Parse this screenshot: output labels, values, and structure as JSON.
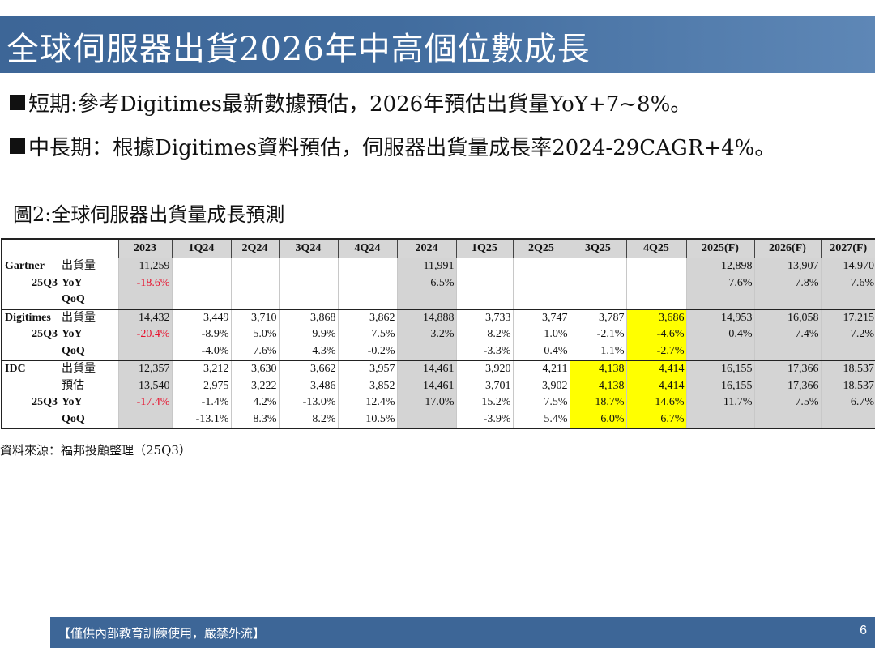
{
  "title": "全球伺服器出貨2026年中高個位數成長",
  "bullets": [
    "短期:參考Digitimes最新數據預估，2026年預估出貨量YoY+7~8%。",
    "中長期：根據Digitimes資料預估，伺服器出貨量成長率2024-29CAGR+4%。"
  ],
  "figure_caption": "圖2:全球伺服器出貨量成長預測",
  "table": {
    "headers": [
      "2023",
      "1Q24",
      "2Q24",
      "3Q24",
      "4Q24",
      "2024",
      "1Q25",
      "2Q25",
      "3Q25",
      "4Q25",
      "2025(F)",
      "2026(F)",
      "2027(F)"
    ],
    "groups": [
      {
        "source": "Gartner",
        "rows": [
          {
            "src": "Gartner",
            "metric": "出貨量",
            "metric_bold": false,
            "values": [
              "11,259",
              "",
              "",
              "",
              "",
              "11,991",
              "",
              "",
              "",
              "",
              "12,898",
              "13,907",
              "14,970"
            ],
            "red": [],
            "yellow": []
          },
          {
            "src": "25Q3",
            "metric": "YoY",
            "metric_bold": true,
            "values": [
              "-18.6%",
              "",
              "",
              "",
              "",
              "6.5%",
              "",
              "",
              "",
              "",
              "7.6%",
              "7.8%",
              "7.6%"
            ],
            "red": [
              0
            ],
            "yellow": []
          },
          {
            "src": "",
            "metric": "QoQ",
            "metric_bold": true,
            "values": [
              "",
              "",
              "",
              "",
              "",
              "",
              "",
              "",
              "",
              "",
              "",
              "",
              ""
            ],
            "red": [],
            "yellow": []
          }
        ]
      },
      {
        "source": "Digitimes",
        "rows": [
          {
            "src": "Digitimes",
            "metric": "出貨量",
            "metric_bold": false,
            "values": [
              "14,432",
              "3,449",
              "3,710",
              "3,868",
              "3,862",
              "14,888",
              "3,733",
              "3,747",
              "3,787",
              "3,686",
              "14,953",
              "16,058",
              "17,215"
            ],
            "red": [],
            "yellow": [
              9
            ]
          },
          {
            "src": "25Q3",
            "metric": "YoY",
            "metric_bold": true,
            "values": [
              "-20.4%",
              "-8.9%",
              "5.0%",
              "9.9%",
              "7.5%",
              "3.2%",
              "8.2%",
              "1.0%",
              "-2.1%",
              "-4.6%",
              "0.4%",
              "7.4%",
              "7.2%"
            ],
            "red": [
              0
            ],
            "yellow": [
              9
            ]
          },
          {
            "src": "",
            "metric": "QoQ",
            "metric_bold": true,
            "values": [
              "",
              "-4.0%",
              "7.6%",
              "4.3%",
              "-0.2%",
              "",
              "-3.3%",
              "0.4%",
              "1.1%",
              "-2.7%",
              "",
              "",
              ""
            ],
            "red": [],
            "yellow": [
              9
            ]
          }
        ]
      },
      {
        "source": "IDC",
        "rows": [
          {
            "src": "IDC",
            "metric": "出貨量",
            "metric_bold": false,
            "values": [
              "12,357",
              "3,212",
              "3,630",
              "3,662",
              "3,957",
              "14,461",
              "3,920",
              "4,211",
              "4,138",
              "4,414",
              "16,155",
              "17,366",
              "18,537"
            ],
            "red": [],
            "yellow": [
              8,
              9
            ]
          },
          {
            "src": "",
            "metric": "預估",
            "metric_bold": false,
            "values": [
              "13,540",
              "2,975",
              "3,222",
              "3,486",
              "3,852",
              "14,461",
              "3,701",
              "3,902",
              "4,138",
              "4,414",
              "16,155",
              "17,366",
              "18,537"
            ],
            "red": [],
            "yellow": [
              8,
              9
            ]
          },
          {
            "src": "25Q3",
            "metric": "YoY",
            "metric_bold": true,
            "values": [
              "-17.4%",
              "-1.4%",
              "4.2%",
              "-13.0%",
              "12.4%",
              "17.0%",
              "15.2%",
              "7.5%",
              "18.7%",
              "14.6%",
              "11.7%",
              "7.5%",
              "6.7%"
            ],
            "red": [
              0
            ],
            "yellow": [
              8,
              9
            ]
          },
          {
            "src": "",
            "metric": "QoQ",
            "metric_bold": true,
            "values": [
              "",
              "-13.1%",
              "8.3%",
              "8.2%",
              "10.5%",
              "",
              "-3.9%",
              "5.4%",
              "6.0%",
              "6.7%",
              "",
              "",
              ""
            ],
            "red": [],
            "yellow": [
              8,
              9
            ]
          }
        ]
      }
    ]
  },
  "source_note": "資料來源：福邦投顧整理（25Q3）",
  "footer": {
    "notice": "【僅供內部教育訓練使用，嚴禁外流】",
    "page_number": "6"
  },
  "colors": {
    "title_bar": "#3d6697",
    "gray_column": "#d4d4d4",
    "highlight": "#ffff00",
    "negative": "#e8112d"
  }
}
